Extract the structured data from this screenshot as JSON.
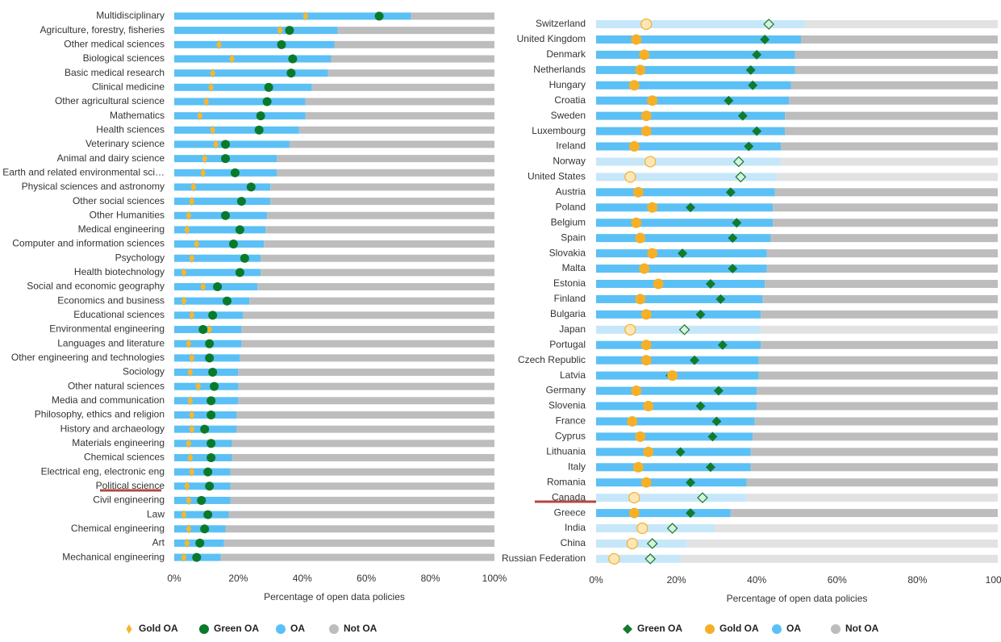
{
  "chart_data": [
    {
      "type": "bar",
      "orientation": "horizontal",
      "x_label": "Percentage of open data policies",
      "categories": [
        "Multidisciplinary",
        "Agriculture, forestry, fisheries",
        "Other medical sciences",
        "Biological sciences",
        "Basic medical research",
        "Clinical medicine",
        "Other agricultural science",
        "Mathematics",
        "Health sciences",
        "Veterinary science",
        "Animal and dairy science",
        "Earth and related environmental sci…",
        "Physical sciences and astronomy",
        "Other social sciences",
        "Other Humanities",
        "Medical engineering",
        "Computer and information sciences",
        "Psychology",
        "Health biotechnology",
        "Social and economic geography",
        "Economics and business",
        "Educational sciences",
        "Environmental engineering",
        "Languages and literature",
        "Other engineering and technologies",
        "Sociology",
        "Other natural sciences",
        "Media and communication",
        "Philosophy, ethics and religion",
        "History and archaeology",
        "Materials engineering",
        "Chemical sciences",
        "Electrical eng, electronic eng",
        "Political science",
        "Civil engineering",
        "Law",
        "Chemical engineering",
        "Art",
        "Mechanical engineering"
      ],
      "series": [
        {
          "name": "Gold OA",
          "mark": "diamond",
          "color": "#f5b731",
          "values": [
            41,
            33,
            14,
            18,
            12,
            11.5,
            10,
            8,
            12,
            13,
            9.5,
            9,
            6,
            5.5,
            4.5,
            4,
            7,
            5.5,
            3,
            9,
            3,
            5.5,
            11,
            4.5,
            5.5,
            5,
            7.5,
            5,
            5.5,
            5.5,
            4.5,
            5,
            5.5,
            4,
            4.5,
            3,
            4.5,
            4,
            3
          ]
        },
        {
          "name": "Green OA",
          "mark": "circle",
          "color": "#0a7a2a",
          "values": [
            64,
            36,
            33.5,
            37,
            36.5,
            29.5,
            29,
            27,
            26.5,
            16,
            16,
            19,
            24,
            21,
            16,
            20.5,
            18.5,
            22,
            20.5,
            13.5,
            16.5,
            12,
            9,
            11,
            11,
            12,
            12.5,
            11.5,
            11.5,
            9.5,
            11.5,
            11.5,
            10.5,
            11,
            8.5,
            10.5,
            9.5,
            8,
            7
          ]
        },
        {
          "name": "OA",
          "mark": "bar",
          "color": "#5bc0f5",
          "values": [
            74,
            51,
            50,
            49,
            48,
            43,
            41,
            41,
            39,
            36,
            32,
            32,
            30,
            30,
            29,
            28.5,
            28,
            27,
            27,
            26,
            23.5,
            21.5,
            21,
            21,
            20.5,
            20,
            20,
            20,
            19.5,
            19.5,
            18,
            18,
            17.5,
            17.5,
            17.5,
            17,
            16,
            15.5,
            14.5
          ]
        },
        {
          "name": "Not OA",
          "mark": "bar",
          "color": "#bdbdbd",
          "values": [
            26,
            49,
            50,
            51,
            52,
            57,
            59,
            59,
            61,
            64,
            68,
            68,
            70,
            70,
            71,
            71.5,
            72,
            73,
            73,
            74,
            76.5,
            78.5,
            79,
            79,
            79.5,
            80,
            80,
            80,
            80.5,
            80.5,
            82,
            82,
            82.5,
            82.5,
            82.5,
            83,
            84,
            84.5,
            85.5
          ]
        }
      ],
      "xlim": [
        0,
        100
      ],
      "xticks": [
        {
          "value": 0,
          "label": "0%"
        },
        {
          "value": 20,
          "label": "20%"
        },
        {
          "value": 40,
          "label": "40%"
        },
        {
          "value": 60,
          "label": "60%"
        },
        {
          "value": 80,
          "label": "80%"
        },
        {
          "value": 100,
          "label": "100%"
        }
      ]
    },
    {
      "type": "bar",
      "orientation": "horizontal",
      "x_label": "Percentage of open data policies",
      "categories": [
        "Switzerland",
        "United Kingdom",
        "Denmark",
        "Netherlands",
        "Hungary",
        "Croatia",
        "Sweden",
        "Luxembourg",
        "Ireland",
        "Norway",
        "United States",
        "Austria",
        "Poland",
        "Belgium",
        "Spain",
        "Slovakia",
        "Malta",
        "Estonia",
        "Finland",
        "Bulgaria",
        "Japan",
        "Portugal",
        "Czech Republic",
        "Latvia",
        "Germany",
        "Slovenia",
        "France",
        "Cyprus",
        "Lithuania",
        "Italy",
        "Romania",
        "Canada",
        "Greece",
        "India",
        "China",
        "Russian Federation"
      ],
      "row_styles": [
        "faded",
        "solid",
        "solid",
        "solid",
        "solid",
        "solid",
        "solid",
        "solid",
        "solid",
        "faded",
        "faded",
        "solid",
        "solid",
        "solid",
        "solid",
        "solid",
        "solid",
        "solid",
        "solid",
        "solid",
        "faded",
        "solid",
        "solid",
        "solid",
        "solid",
        "solid",
        "solid",
        "solid",
        "solid",
        "solid",
        "solid",
        "faded",
        "solid",
        "faded",
        "faded",
        "faded"
      ],
      "series": [
        {
          "name": "Green OA",
          "mark": "diamond",
          "color": "#137a2c",
          "faded_color": "#d8f1dc",
          "values": [
            43,
            42,
            40,
            38.5,
            39,
            33,
            36.5,
            40,
            38,
            35.5,
            36,
            33.5,
            23.5,
            35,
            34,
            21.5,
            34,
            28.5,
            31,
            26,
            22,
            31.5,
            24.5,
            18.5,
            30.5,
            26,
            30,
            29,
            21,
            28.5,
            23.5,
            26.5,
            23.5,
            19,
            14,
            13.5
          ]
        },
        {
          "name": "Gold OA",
          "mark": "circle",
          "color": "#f5b028",
          "faded_color": "#fde7b8",
          "values": [
            12.5,
            10,
            12,
            11,
            9.5,
            14,
            12.5,
            12.5,
            9.5,
            13.5,
            8.5,
            10.5,
            14,
            10,
            11,
            14,
            12,
            15.5,
            11,
            12.5,
            8.5,
            12.5,
            12.5,
            19,
            10,
            13,
            9,
            11,
            13,
            10.5,
            12.5,
            9.5,
            9.5,
            11.5,
            9,
            4.5
          ]
        },
        {
          "name": "OA",
          "mark": "bar",
          "color": "#5bc0f5",
          "faded_color": "#c6e7f9",
          "values": [
            52,
            51,
            49.5,
            49.5,
            48.5,
            48,
            47,
            47,
            46,
            46,
            45,
            44.5,
            44,
            44,
            43.5,
            42.5,
            42.5,
            42,
            41.5,
            41,
            41,
            41,
            40.5,
            40.5,
            40,
            40,
            39.5,
            39,
            38.5,
            38.5,
            37.5,
            37.5,
            33.5,
            29.5,
            22.5,
            21
          ]
        },
        {
          "name": "Not OA",
          "mark": "bar",
          "color": "#bdbdbd",
          "faded_color": "#e2e2e2",
          "values": [
            48,
            49,
            50.5,
            50.5,
            51.5,
            52,
            53,
            53,
            54,
            54,
            55,
            55.5,
            56,
            56,
            56.5,
            57.5,
            57.5,
            58,
            58.5,
            59,
            59,
            59,
            59.5,
            59.5,
            60,
            60,
            60.5,
            61,
            61.5,
            61.5,
            62.5,
            62.5,
            66.5,
            70.5,
            77.5,
            79
          ]
        }
      ],
      "xlim": [
        0,
        100
      ],
      "xticks": [
        {
          "value": 0,
          "label": "0%"
        },
        {
          "value": 20,
          "label": "20%"
        },
        {
          "value": 40,
          "label": "40%"
        },
        {
          "value": 60,
          "label": "60%"
        },
        {
          "value": 80,
          "label": "80%"
        },
        {
          "value": 100,
          "label": "100%"
        }
      ]
    }
  ]
}
